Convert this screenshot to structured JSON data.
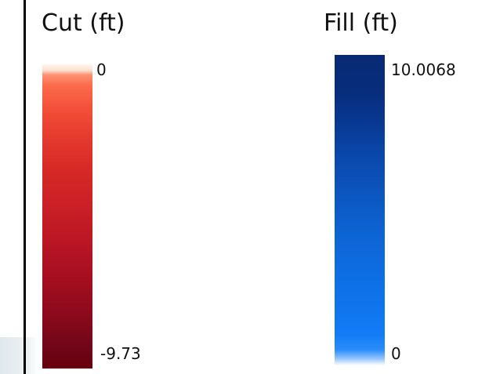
{
  "cut_legend": {
    "title": "Cut (ft)",
    "max_label": "0",
    "min_label": "-9.73",
    "max_value": 0,
    "min_value": -9.73,
    "colors": {
      "top": "#fff5f0",
      "mid": "#cb2026",
      "bottom": "#67000d"
    }
  },
  "fill_legend": {
    "title": "Fill (ft)",
    "max_label": "10.0068",
    "min_label": "0",
    "max_value": 10.0068,
    "min_value": 0,
    "colors": {
      "top": "#082a73",
      "mid": "#0d62d1",
      "bottom": "#ffffff"
    }
  }
}
